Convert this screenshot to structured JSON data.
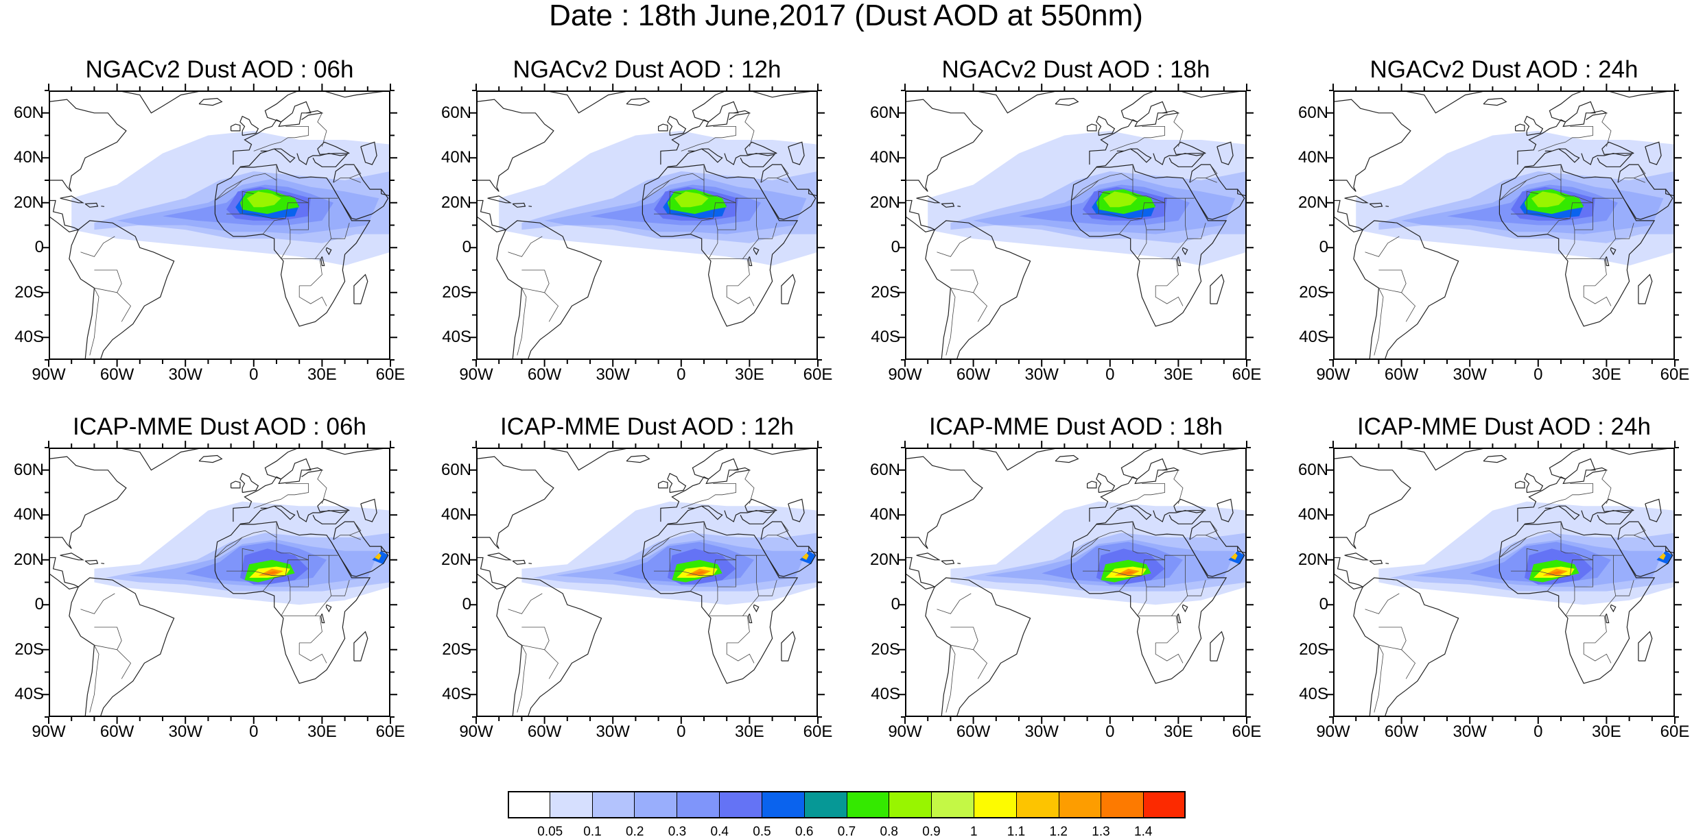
{
  "title": "Date : 18th June,2017 (Dust AOD at 550nm)",
  "lat_labels": [
    "60N",
    "40N",
    "20N",
    "0",
    "20S",
    "40S"
  ],
  "lon_labels": [
    "90W",
    "60W",
    "30W",
    "0",
    "30E",
    "60E"
  ],
  "map_extent": {
    "lon": [
      -90,
      60
    ],
    "lat": [
      -50,
      70
    ]
  },
  "panels": [
    {
      "title": "NGACv2 Dust AOD : 06h",
      "model": "NGACv2",
      "hour": "06h"
    },
    {
      "title": "NGACv2 Dust AOD : 12h",
      "model": "NGACv2",
      "hour": "12h"
    },
    {
      "title": "NGACv2 Dust AOD : 18h",
      "model": "NGACv2",
      "hour": "18h"
    },
    {
      "title": "NGACv2 Dust AOD : 24h",
      "model": "NGACv2",
      "hour": "24h"
    },
    {
      "title": "ICAP-MME Dust AOD : 06h",
      "model": "ICAP-MME",
      "hour": "06h"
    },
    {
      "title": "ICAP-MME Dust AOD : 12h",
      "model": "ICAP-MME",
      "hour": "12h"
    },
    {
      "title": "ICAP-MME Dust AOD : 18h",
      "model": "ICAP-MME",
      "hour": "18h"
    },
    {
      "title": "ICAP-MME Dust AOD : 24h",
      "model": "ICAP-MME",
      "hour": "24h"
    }
  ],
  "colorbar": {
    "colors": [
      "#ffffff",
      "#d6dffe",
      "#b3c3fd",
      "#99aefc",
      "#7f95fa",
      "#6473f5",
      "#0a63ee",
      "#069896",
      "#34e900",
      "#98f500",
      "#c4f845",
      "#fdfb00",
      "#fdc400",
      "#fd9d00",
      "#fd7a00",
      "#fc2a00"
    ],
    "labels": [
      "0.05",
      "0.1",
      "0.2",
      "0.3",
      "0.4",
      "0.5",
      "0.6",
      "0.7",
      "0.8",
      "0.9",
      "1",
      "1.1",
      "1.2",
      "1.3",
      "1.4"
    ]
  }
}
